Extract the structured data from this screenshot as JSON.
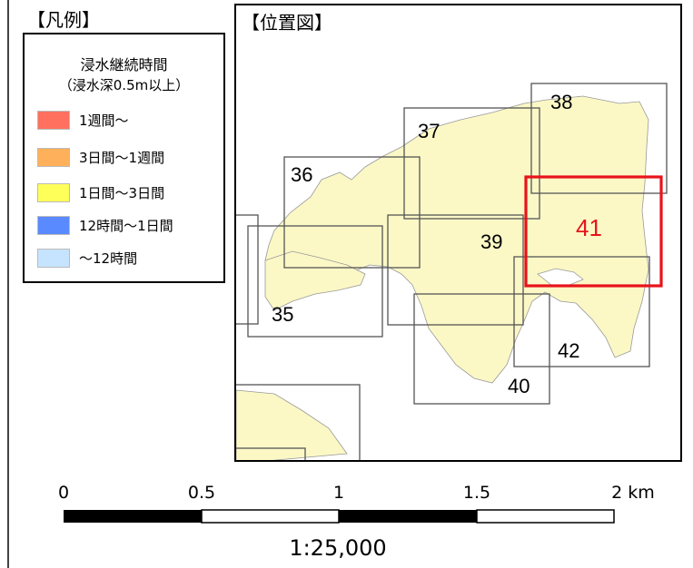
{
  "legend": {
    "title": "【凡例】",
    "heading": "浸水継続時間",
    "subheading": "（浸水深0.5m以上）",
    "items": [
      {
        "label": "1週間～",
        "color": "#ff705e"
      },
      {
        "label": "3日間～1週間",
        "color": "#ffb05a"
      },
      {
        "label": "1日間～3日間",
        "color": "#ffff5a"
      },
      {
        "label": "12時間～1日間",
        "color": "#5a8aff"
      },
      {
        "label": "～12時間",
        "color": "#c6e4ff"
      }
    ]
  },
  "location_map": {
    "title": "【位置図】",
    "land_color": "#fbf8c6",
    "highlight_color": "#e8131b",
    "tiles": [
      {
        "id": "35",
        "highlighted": false
      },
      {
        "id": "36",
        "highlighted": false
      },
      {
        "id": "37",
        "highlighted": false
      },
      {
        "id": "38",
        "highlighted": false
      },
      {
        "id": "39",
        "highlighted": false
      },
      {
        "id": "40",
        "highlighted": false
      },
      {
        "id": "41",
        "highlighted": true
      },
      {
        "id": "42",
        "highlighted": false
      }
    ]
  },
  "scale": {
    "ticks": [
      "0",
      "0.5",
      "1",
      "1.5",
      "2 km"
    ],
    "ratio": "1:25,000"
  }
}
